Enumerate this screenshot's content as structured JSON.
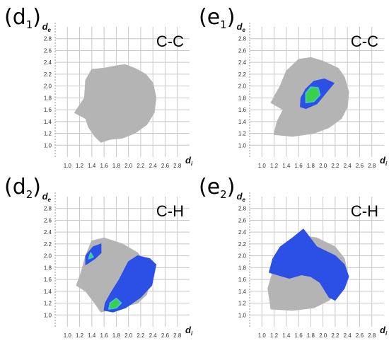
{
  "chart_data": [
    {
      "type": "scatter",
      "panel_label": "d",
      "panel_sub": "1",
      "title": "C-C",
      "xlabel": "d",
      "xlabel_sub": "i",
      "ylabel": "d",
      "ylabel_sub": "e",
      "xlim": [
        0.8,
        3.0
      ],
      "ylim": [
        0.8,
        3.0
      ],
      "x_ticks": [
        "1.0",
        "1.2",
        "1.4",
        "1.6",
        "1.8",
        "2.0",
        "2.2",
        "2.4",
        "2.6",
        "2.8"
      ],
      "y_ticks": [
        "1.0",
        "1.2",
        "1.4",
        "1.6",
        "1.8",
        "2.0",
        "2.2",
        "2.4",
        "2.6",
        "2.8"
      ],
      "grid": true,
      "series": [
        {
          "role": "full-fingerprint",
          "color": "#b4b4b4",
          "outline": [
            [
              1.55,
              1.05
            ],
            [
              1.7,
              1.1
            ],
            [
              1.9,
              1.12
            ],
            [
              2.1,
              1.2
            ],
            [
              2.3,
              1.35
            ],
            [
              2.42,
              1.55
            ],
            [
              2.45,
              1.8
            ],
            [
              2.4,
              2.05
            ],
            [
              2.28,
              2.2
            ],
            [
              2.1,
              2.3
            ],
            [
              1.95,
              2.36
            ],
            [
              1.85,
              2.35
            ],
            [
              1.6,
              2.3
            ],
            [
              1.4,
              2.28
            ],
            [
              1.3,
              2.1
            ],
            [
              1.28,
              1.8
            ],
            [
              1.12,
              1.55
            ],
            [
              1.3,
              1.45
            ],
            [
              1.35,
              1.3
            ],
            [
              1.45,
              1.15
            ]
          ]
        }
      ]
    },
    {
      "type": "scatter",
      "panel_label": "e",
      "panel_sub": "1",
      "title": "C-C",
      "xlabel": "d",
      "xlabel_sub": "i",
      "ylabel": "d",
      "ylabel_sub": "e",
      "xlim": [
        0.8,
        3.0
      ],
      "ylim": [
        0.8,
        3.0
      ],
      "x_ticks": [
        "1.0",
        "1.2",
        "1.4",
        "1.6",
        "1.8",
        "2.0",
        "2.2",
        "2.4",
        "2.6",
        "2.8"
      ],
      "y_ticks": [
        "1.0",
        "1.2",
        "1.4",
        "1.6",
        "1.8",
        "2.0",
        "2.2",
        "2.4",
        "2.6",
        "2.8"
      ],
      "grid": true,
      "series": [
        {
          "role": "full-fingerprint",
          "color": "#b4b4b4",
          "outline": [
            [
              1.2,
              1.18
            ],
            [
              1.5,
              1.15
            ],
            [
              1.85,
              1.2
            ],
            [
              2.1,
              1.3
            ],
            [
              2.3,
              1.45
            ],
            [
              2.4,
              1.65
            ],
            [
              2.42,
              1.9
            ],
            [
              2.35,
              2.15
            ],
            [
              2.25,
              2.3
            ],
            [
              2.0,
              2.42
            ],
            [
              1.8,
              2.48
            ],
            [
              1.6,
              2.45
            ],
            [
              1.4,
              2.25
            ],
            [
              1.3,
              2.0
            ],
            [
              1.15,
              1.72
            ],
            [
              1.35,
              1.6
            ],
            [
              1.25,
              1.4
            ]
          ]
        },
        {
          "role": "highlighted-contact",
          "color": "#2c4fe6",
          "outline": [
            [
              1.63,
              1.65
            ],
            [
              1.72,
              1.62
            ],
            [
              1.9,
              1.7
            ],
            [
              2.1,
              1.95
            ],
            [
              2.18,
              2.05
            ],
            [
              2.02,
              2.12
            ],
            [
              1.85,
              2.08
            ],
            [
              1.72,
              1.95
            ],
            [
              1.64,
              1.8
            ]
          ],
          "core_color": "#3bd04a",
          "core": [
            [
              1.72,
              1.72
            ],
            [
              1.85,
              1.74
            ],
            [
              1.95,
              1.85
            ],
            [
              1.92,
              1.97
            ],
            [
              1.8,
              1.98
            ],
            [
              1.72,
              1.88
            ]
          ]
        }
      ]
    },
    {
      "type": "scatter",
      "panel_label": "d",
      "panel_sub": "2",
      "title": "C-H",
      "xlabel": "d",
      "xlabel_sub": "i",
      "ylabel": "d",
      "ylabel_sub": "e",
      "xlim": [
        0.8,
        3.0
      ],
      "ylim": [
        0.8,
        3.0
      ],
      "x_ticks": [
        "1.0",
        "1.2",
        "1.4",
        "1.6",
        "1.8",
        "2.0",
        "2.2",
        "2.4",
        "2.6",
        "2.8"
      ],
      "y_ticks": [
        "1.0",
        "1.2",
        "1.4",
        "1.6",
        "1.8",
        "2.0",
        "2.2",
        "2.4",
        "2.6",
        "2.8"
      ],
      "grid": true,
      "series": [
        {
          "role": "full-fingerprint",
          "color": "#b4b4b4",
          "outline": [
            [
              1.55,
              1.05
            ],
            [
              1.75,
              1.1
            ],
            [
              1.95,
              1.15
            ],
            [
              2.15,
              1.2
            ],
            [
              2.3,
              1.35
            ],
            [
              2.35,
              1.6
            ],
            [
              2.3,
              1.85
            ],
            [
              2.15,
              2.05
            ],
            [
              1.9,
              2.2
            ],
            [
              1.6,
              2.3
            ],
            [
              1.4,
              2.25
            ],
            [
              1.3,
              2.0
            ],
            [
              1.22,
              1.7
            ],
            [
              1.15,
              1.5
            ],
            [
              1.3,
              1.4
            ],
            [
              1.45,
              1.2
            ]
          ]
        },
        {
          "role": "highlighted-contact",
          "color": "#2c4fe6",
          "outline": [
            [
              1.6,
              1.08
            ],
            [
              1.75,
              1.05
            ],
            [
              1.95,
              1.12
            ],
            [
              2.2,
              1.3
            ],
            [
              2.38,
              1.5
            ],
            [
              2.45,
              1.85
            ],
            [
              2.35,
              1.95
            ],
            [
              2.15,
              2.0
            ],
            [
              2.0,
              1.9
            ],
            [
              1.85,
              1.6
            ],
            [
              1.7,
              1.35
            ],
            [
              1.62,
              1.2
            ]
          ],
          "core_color": "#3bd04a",
          "core": [
            [
              1.68,
              1.1
            ],
            [
              1.8,
              1.12
            ],
            [
              1.88,
              1.2
            ],
            [
              1.8,
              1.28
            ],
            [
              1.7,
              1.2
            ]
          ]
        },
        {
          "role": "highlighted-contact",
          "color": "#2c4fe6",
          "outline": [
            [
              1.3,
              1.85
            ],
            [
              1.45,
              1.95
            ],
            [
              1.55,
              2.05
            ],
            [
              1.55,
              2.2
            ],
            [
              1.42,
              2.15
            ],
            [
              1.3,
              2.0
            ]
          ],
          "core_color": "#3bd04a",
          "core": [
            [
              1.35,
              1.95
            ],
            [
              1.42,
              1.98
            ],
            [
              1.38,
              2.05
            ]
          ]
        }
      ]
    },
    {
      "type": "scatter",
      "panel_label": "e",
      "panel_sub": "2",
      "title": "C-H",
      "xlabel": "d",
      "xlabel_sub": "i",
      "ylabel": "d",
      "ylabel_sub": "e",
      "xlim": [
        0.8,
        3.0
      ],
      "ylim": [
        0.8,
        3.0
      ],
      "x_ticks": [
        "1.0",
        "1.2",
        "1.4",
        "1.6",
        "1.8",
        "2.0",
        "2.2",
        "2.4",
        "2.6",
        "2.8"
      ],
      "y_ticks": [
        "1.0",
        "1.2",
        "1.4",
        "1.6",
        "1.8",
        "2.0",
        "2.2",
        "2.4",
        "2.6",
        "2.8"
      ],
      "grid": true,
      "series": [
        {
          "role": "full-fingerprint",
          "color": "#b4b4b4",
          "outline": [
            [
              1.15,
              1.1
            ],
            [
              1.5,
              1.08
            ],
            [
              1.85,
              1.12
            ],
            [
              2.1,
              1.25
            ],
            [
              2.3,
              1.45
            ],
            [
              2.4,
              1.7
            ],
            [
              2.35,
              1.95
            ],
            [
              2.2,
              2.15
            ],
            [
              1.9,
              2.3
            ],
            [
              1.6,
              2.35
            ],
            [
              1.35,
              2.15
            ],
            [
              1.2,
              1.8
            ],
            [
              1.1,
              1.45
            ]
          ]
        },
        {
          "role": "highlighted-contact",
          "color": "#2c4fe6",
          "outline": [
            [
              1.12,
              1.72
            ],
            [
              1.25,
              1.68
            ],
            [
              1.45,
              1.62
            ],
            [
              1.65,
              1.68
            ],
            [
              1.8,
              1.65
            ],
            [
              1.95,
              1.55
            ],
            [
              2.1,
              1.3
            ],
            [
              2.2,
              1.25
            ],
            [
              2.35,
              1.45
            ],
            [
              2.42,
              1.65
            ],
            [
              2.35,
              1.85
            ],
            [
              2.2,
              2.0
            ],
            [
              1.9,
              2.15
            ],
            [
              1.68,
              2.45
            ],
            [
              1.5,
              2.3
            ],
            [
              1.3,
              2.15
            ],
            [
              1.18,
              1.95
            ]
          ],
          "core_color": "#3bd04a",
          "core": []
        }
      ]
    }
  ]
}
